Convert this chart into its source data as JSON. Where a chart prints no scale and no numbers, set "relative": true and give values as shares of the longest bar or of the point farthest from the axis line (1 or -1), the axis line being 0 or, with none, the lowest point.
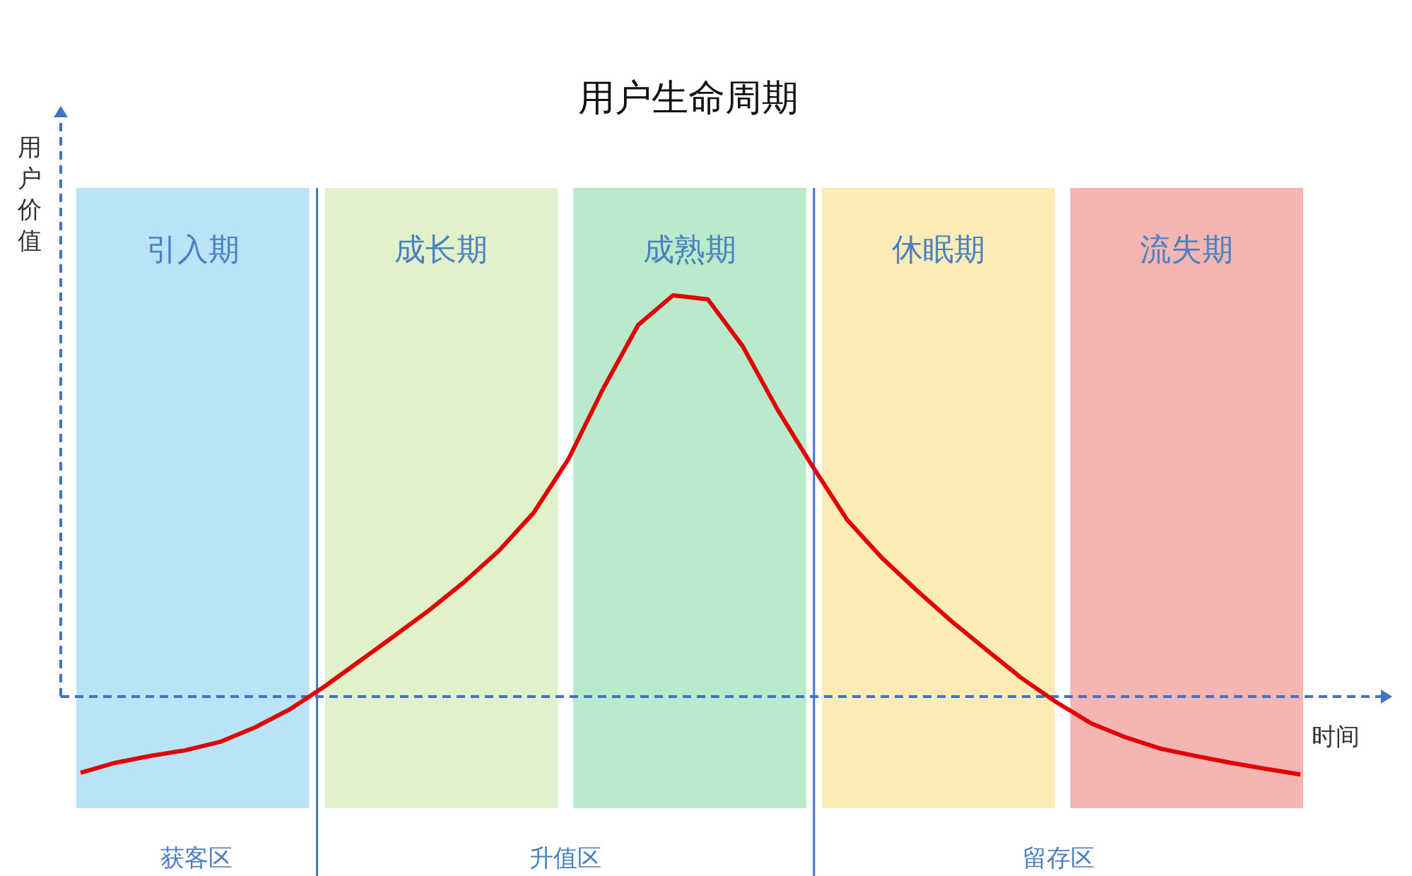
{
  "chart_data": {
    "type": "line",
    "title": "用户生命周期",
    "xlabel": "时间",
    "ylabel": "用户价值",
    "relative": true,
    "legend": false,
    "ref_lines": [
      {
        "axis": "y",
        "value": 0,
        "color": "#4472c4",
        "line_style": "dashed"
      }
    ],
    "categories": [
      null,
      null,
      null,
      null,
      null,
      null,
      null,
      null,
      null,
      null,
      null,
      null,
      null,
      null,
      null,
      null,
      null,
      null,
      null,
      null,
      null,
      null,
      null,
      null,
      null,
      null,
      null,
      null,
      null,
      null,
      null,
      null,
      null,
      null,
      null,
      null
    ],
    "series": [
      {
        "color": "#e00000",
        "values": [
          -0.19,
          -0.165,
          -0.148,
          -0.134,
          -0.113,
          -0.077,
          -0.032,
          0.025,
          0.088,
          0.151,
          0.215,
          0.285,
          0.363,
          0.458,
          0.592,
          0.768,
          0.926,
          1.0,
          0.99,
          0.873,
          0.715,
          0.574,
          0.44,
          0.345,
          0.264,
          0.187,
          0.116,
          0.046,
          -0.014,
          -0.067,
          -0.102,
          -0.13,
          -0.148,
          -0.165,
          -0.18,
          -0.194
        ]
      }
    ],
    "annotations": [
      "引入期",
      "成长期",
      "成熟期",
      "休眠期",
      "流失期",
      "获客区",
      "升值区",
      "留存区"
    ]
  }
}
